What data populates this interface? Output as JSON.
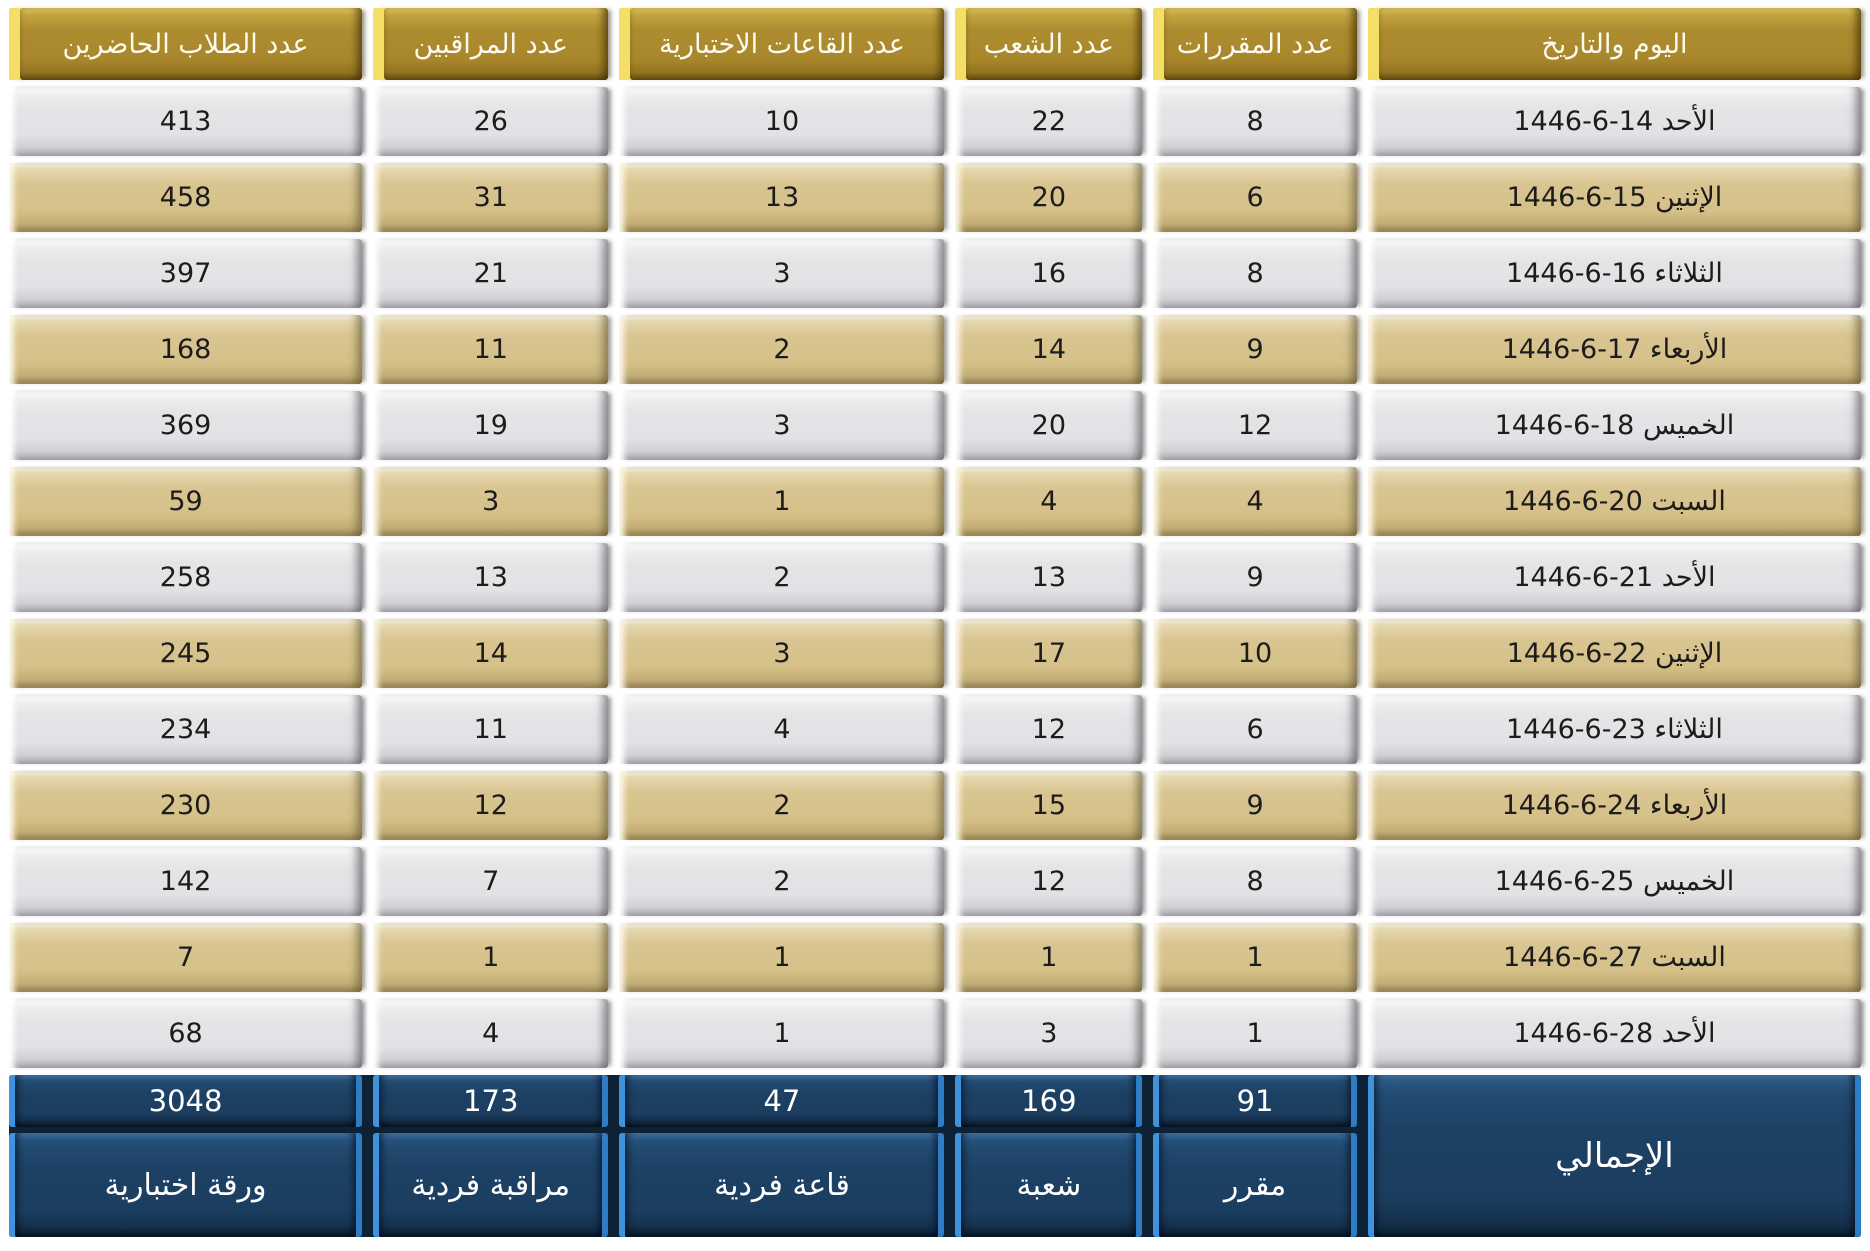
{
  "chart_data": {
    "type": "table",
    "direction": "rtl",
    "headers": {
      "date": "اليوم والتاريخ",
      "courses": "عدد المقررات",
      "sections": "عدد الشعب",
      "halls": "عدد القاعات الاختبارية",
      "proctors": "عدد المراقبين",
      "students": "عدد الطلاب الحاضرين"
    },
    "rows": [
      {
        "date": "الأحد 14-6-1446",
        "courses": "8",
        "sections": "22",
        "halls": "10",
        "proctors": "26",
        "students": "413"
      },
      {
        "date": "الإثنين 15-6-1446",
        "courses": "6",
        "sections": "20",
        "halls": "13",
        "proctors": "31",
        "students": "458"
      },
      {
        "date": "الثلاثاء 16-6-1446",
        "courses": "8",
        "sections": "16",
        "halls": "3",
        "proctors": "21",
        "students": "397"
      },
      {
        "date": "الأربعاء 17-6-1446",
        "courses": "9",
        "sections": "14",
        "halls": "2",
        "proctors": "11",
        "students": "168"
      },
      {
        "date": "الخميس 18-6-1446",
        "courses": "12",
        "sections": "20",
        "halls": "3",
        "proctors": "19",
        "students": "369"
      },
      {
        "date": "السبت 20-6-1446",
        "courses": "4",
        "sections": "4",
        "halls": "1",
        "proctors": "3",
        "students": "59"
      },
      {
        "date": "الأحد 21-6-1446",
        "courses": "9",
        "sections": "13",
        "halls": "2",
        "proctors": "13",
        "students": "258"
      },
      {
        "date": "الإثنين 22-6-1446",
        "courses": "10",
        "sections": "17",
        "halls": "3",
        "proctors": "14",
        "students": "245"
      },
      {
        "date": "الثلاثاء 23-6-1446",
        "courses": "6",
        "sections": "12",
        "halls": "4",
        "proctors": "11",
        "students": "234"
      },
      {
        "date": "الأربعاء 24-6-1446",
        "courses": "9",
        "sections": "15",
        "halls": "2",
        "proctors": "12",
        "students": "230"
      },
      {
        "date": "الخميس 25-6-1446",
        "courses": "8",
        "sections": "12",
        "halls": "2",
        "proctors": "7",
        "students": "142"
      },
      {
        "date": "السبت 27-6-1446",
        "courses": "1",
        "sections": "1",
        "halls": "1",
        "proctors": "1",
        "students": "7"
      },
      {
        "date": "الأحد 28-6-1446",
        "courses": "1",
        "sections": "3",
        "halls": "1",
        "proctors": "4",
        "students": "68"
      }
    ],
    "footer": {
      "label": "الإجمالي",
      "totals": {
        "courses": "91",
        "sections": "169",
        "halls": "47",
        "proctors": "173",
        "students": "3048"
      },
      "units": {
        "courses": "مقرر",
        "sections": "شعبة",
        "halls": "قاعة فردية",
        "proctors": "مراقبة فردية",
        "students": "ورقة اختبارية"
      }
    },
    "colors": {
      "header_gold": "#ad8b2e",
      "header_gold_strip": "#f3de66",
      "row_gray": "#e4e3e6",
      "row_tan": "#d7c28c",
      "footer_navy": "#1d4164",
      "footer_blue_strip": "#3f93dc",
      "data_text": "#1c1c1c",
      "header_text": "#ffffff"
    }
  }
}
